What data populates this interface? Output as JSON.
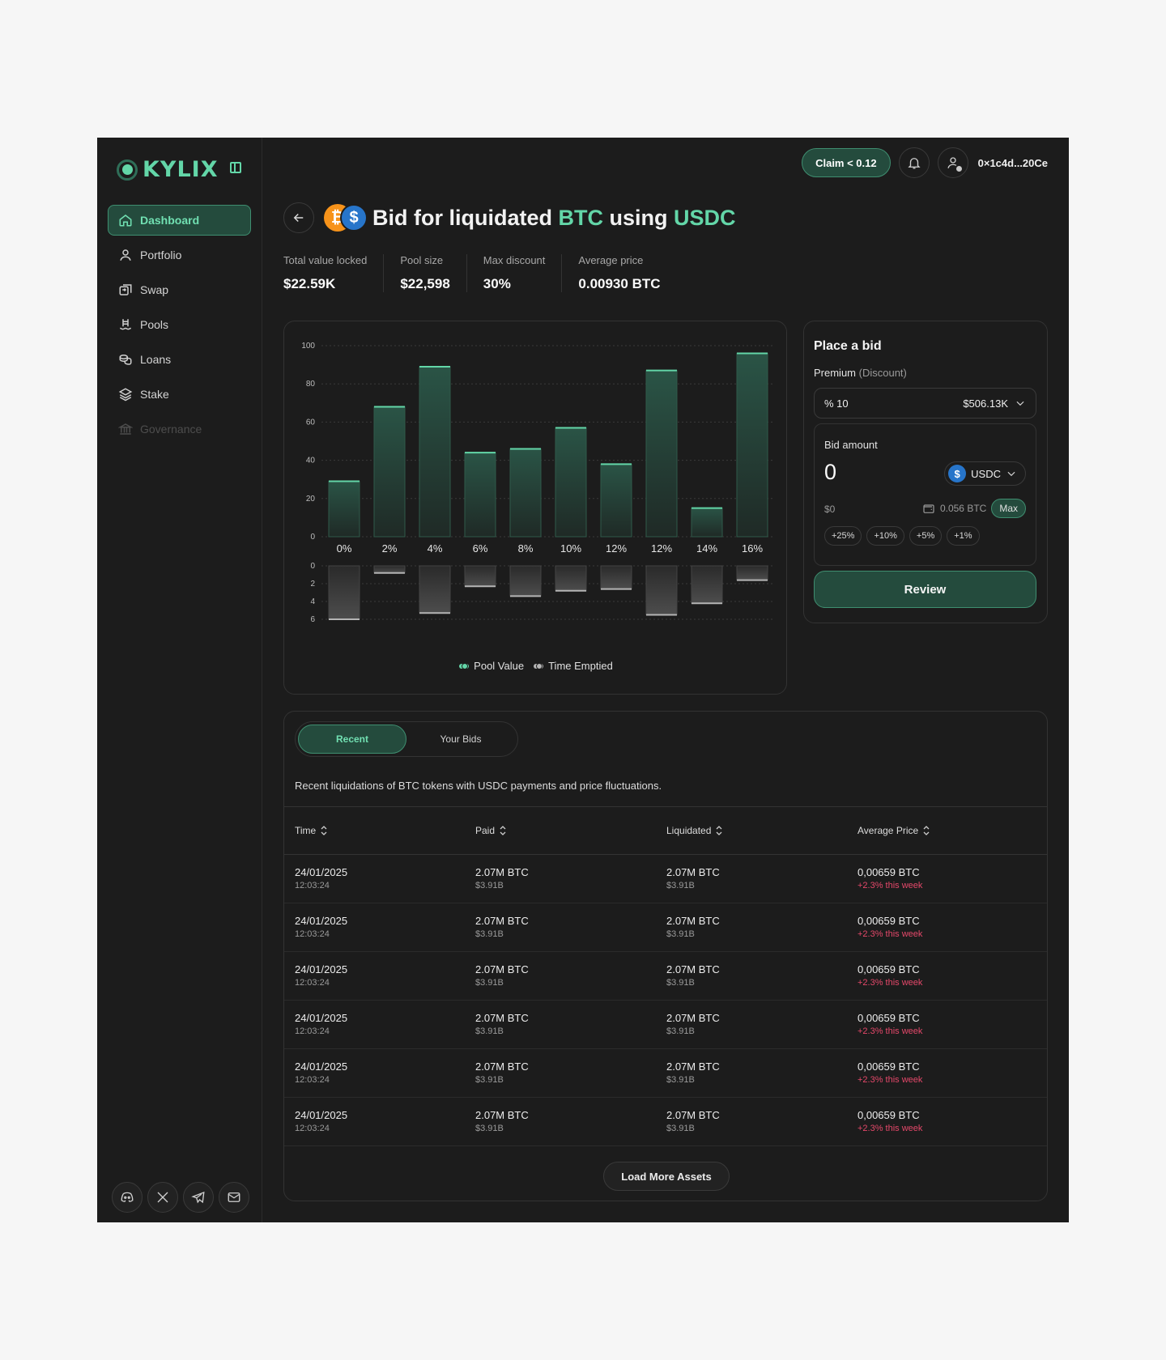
{
  "brand": {
    "name": "KYLIX"
  },
  "sidebar": {
    "items": [
      {
        "label": "Dashboard",
        "icon": "home-icon"
      },
      {
        "label": "Portfolio",
        "icon": "user-icon"
      },
      {
        "label": "Swap",
        "icon": "swap-icon"
      },
      {
        "label": "Pools",
        "icon": "pool-icon"
      },
      {
        "label": "Loans",
        "icon": "coins-icon"
      },
      {
        "label": "Stake",
        "icon": "layers-icon"
      },
      {
        "label": "Governance",
        "icon": "bank-icon"
      }
    ],
    "socials": [
      "discord-icon",
      "x-icon",
      "telegram-icon",
      "mail-icon"
    ]
  },
  "topbar": {
    "claim_label": "Claim < 0.12",
    "wallet": "0×1c4d...20Ce"
  },
  "header": {
    "title_prefix": "Bid for liquidated ",
    "token_a": "BTC",
    "title_mid": " using ",
    "token_b": "USDC"
  },
  "stats": [
    {
      "label": "Total value locked",
      "value": "$22.59K"
    },
    {
      "label": "Pool size",
      "value": "$22,598"
    },
    {
      "label": "Max discount",
      "value": "30%"
    },
    {
      "label": "Average price",
      "value": "0.00930 BTC"
    }
  ],
  "chart_data": {
    "type": "bar",
    "categories": [
      "0%",
      "2%",
      "4%",
      "6%",
      "8%",
      "10%",
      "12%",
      "12%",
      "14%",
      "16%"
    ],
    "series": [
      {
        "name": "Pool Value",
        "values": [
          29,
          68,
          89,
          44,
          46,
          57,
          38,
          87,
          15,
          96
        ]
      },
      {
        "name": "Time Emptied",
        "values": [
          6,
          0.8,
          5.3,
          2.3,
          3.4,
          2.8,
          2.6,
          5.5,
          4.2,
          1.6
        ]
      }
    ],
    "ylim_top": [
      0,
      100
    ],
    "yticks_top": [
      0,
      20,
      40,
      60,
      80,
      100
    ],
    "ylim_bottom": [
      0,
      6
    ],
    "yticks_bottom": [
      0,
      2,
      4,
      6
    ],
    "grid": true,
    "legend": "bottom-center",
    "colors": {
      "pool": "#63d6a8",
      "time": "#b5b5b5"
    }
  },
  "bid": {
    "title": "Place a bid",
    "premium_label": "Premium",
    "premium_hint": "(Discount)",
    "premium_value": "% 10",
    "premium_amount": "$506.13K",
    "amount_label": "Bid amount",
    "amount_value": "0",
    "token": "USDC",
    "usd_value": "$0",
    "balance": "0.056 BTC",
    "max_label": "Max",
    "chips": [
      "+25%",
      "+10%",
      "+5%",
      "+1%"
    ],
    "review_label": "Review"
  },
  "table": {
    "tabs": [
      "Recent",
      "Your Bids"
    ],
    "description": "Recent liquidations of BTC tokens with USDC payments and price fluctuations.",
    "columns": [
      "Time",
      "Paid",
      "Liquidated",
      "Average Price"
    ],
    "rows": [
      {
        "date": "24/01/2025",
        "time": "12:03:24",
        "paid": "2.07M BTC",
        "paid_usd": "$3.91B",
        "liq": "2.07M BTC",
        "liq_usd": "$3.91B",
        "avg": "0,00659 BTC",
        "change": "+2.3% this week"
      },
      {
        "date": "24/01/2025",
        "time": "12:03:24",
        "paid": "2.07M BTC",
        "paid_usd": "$3.91B",
        "liq": "2.07M BTC",
        "liq_usd": "$3.91B",
        "avg": "0,00659 BTC",
        "change": "+2.3% this week"
      },
      {
        "date": "24/01/2025",
        "time": "12:03:24",
        "paid": "2.07M BTC",
        "paid_usd": "$3.91B",
        "liq": "2.07M BTC",
        "liq_usd": "$3.91B",
        "avg": "0,00659 BTC",
        "change": "+2.3% this week"
      },
      {
        "date": "24/01/2025",
        "time": "12:03:24",
        "paid": "2.07M BTC",
        "paid_usd": "$3.91B",
        "liq": "2.07M BTC",
        "liq_usd": "$3.91B",
        "avg": "0,00659 BTC",
        "change": "+2.3% this week"
      },
      {
        "date": "24/01/2025",
        "time": "12:03:24",
        "paid": "2.07M BTC",
        "paid_usd": "$3.91B",
        "liq": "2.07M BTC",
        "liq_usd": "$3.91B",
        "avg": "0,00659 BTC",
        "change": "+2.3% this week"
      },
      {
        "date": "24/01/2025",
        "time": "12:03:24",
        "paid": "2.07M BTC",
        "paid_usd": "$3.91B",
        "liq": "2.07M BTC",
        "liq_usd": "$3.91B",
        "avg": "0,00659 BTC",
        "change": "+2.3% this week"
      }
    ],
    "load_more_label": "Load More Assets"
  }
}
